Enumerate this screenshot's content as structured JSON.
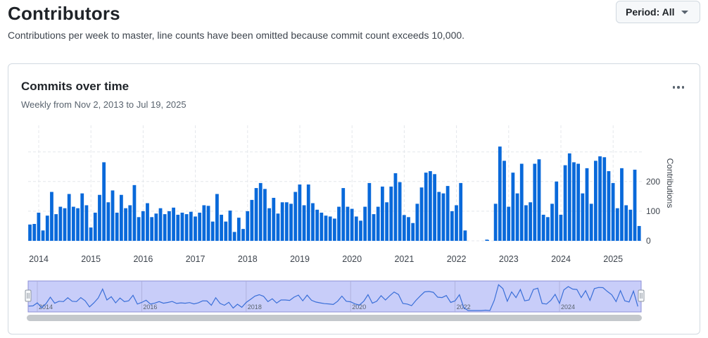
{
  "header": {
    "title": "Contributors",
    "subtitle": "Contributions per week to master, line counts have been omitted because commit count exceeds 10,000.",
    "period_label": "Period: All"
  },
  "card": {
    "title": "Commits over time",
    "subtitle": "Weekly from Nov 2, 2013 to Jul 19, 2025"
  },
  "colors": {
    "bar": "#0969da",
    "navigator_fill": "#c8cdf9",
    "navigator_line": "#3a6fd8"
  },
  "chart_data": {
    "type": "bar",
    "xlabel": "",
    "ylabel": "Contributions",
    "x_range": [
      "2013-11-02",
      "2025-07-19"
    ],
    "ylim": [
      0,
      330
    ],
    "yticks": [
      0,
      100,
      200
    ],
    "xticks": [
      "2014",
      "2015",
      "2016",
      "2017",
      "2018",
      "2019",
      "2020",
      "2021",
      "2022",
      "2023",
      "2024",
      "2025"
    ],
    "navigator_ticks": [
      "2014",
      "2016",
      "2018",
      "2020",
      "2022",
      "2024"
    ],
    "grid": true,
    "series": [
      {
        "interval": "monthly",
        "start": "2013-11",
        "values": [
          55,
          57,
          95,
          35,
          85,
          165,
          90,
          115,
          110,
          158,
          115,
          110,
          160,
          120,
          45,
          95,
          155,
          265,
          130,
          170,
          95,
          155,
          110,
          120,
          188,
          80,
          100,
          127,
          80,
          92,
          110,
          90,
          100,
          112,
          88,
          95,
          90,
          98,
          82,
          95,
          120,
          118,
          65,
          158,
          88,
          65,
          102,
          30,
          78,
          40,
          100,
          138,
          178,
          195,
          175,
          110,
          145,
          92,
          130,
          130,
          125,
          165,
          190,
          120,
          190,
          127,
          105,
          95,
          85,
          82,
          75,
          115,
          178,
          115,
          108,
          82,
          68,
          115,
          195,
          90,
          115,
          183,
          130,
          183,
          228,
          198,
          87,
          80,
          60,
          125,
          180,
          230,
          235,
          225,
          165,
          160,
          185,
          100,
          120,
          195,
          35,
          0,
          0,
          0,
          0,
          4,
          0,
          125,
          318,
          270,
          115,
          230,
          160,
          260,
          120,
          130,
          260,
          275,
          88,
          80,
          125,
          200,
          88,
          255,
          295,
          265,
          260,
          160,
          245,
          125,
          270,
          285,
          282,
          235,
          195,
          110,
          245,
          120,
          105,
          240,
          50
        ]
      }
    ]
  }
}
